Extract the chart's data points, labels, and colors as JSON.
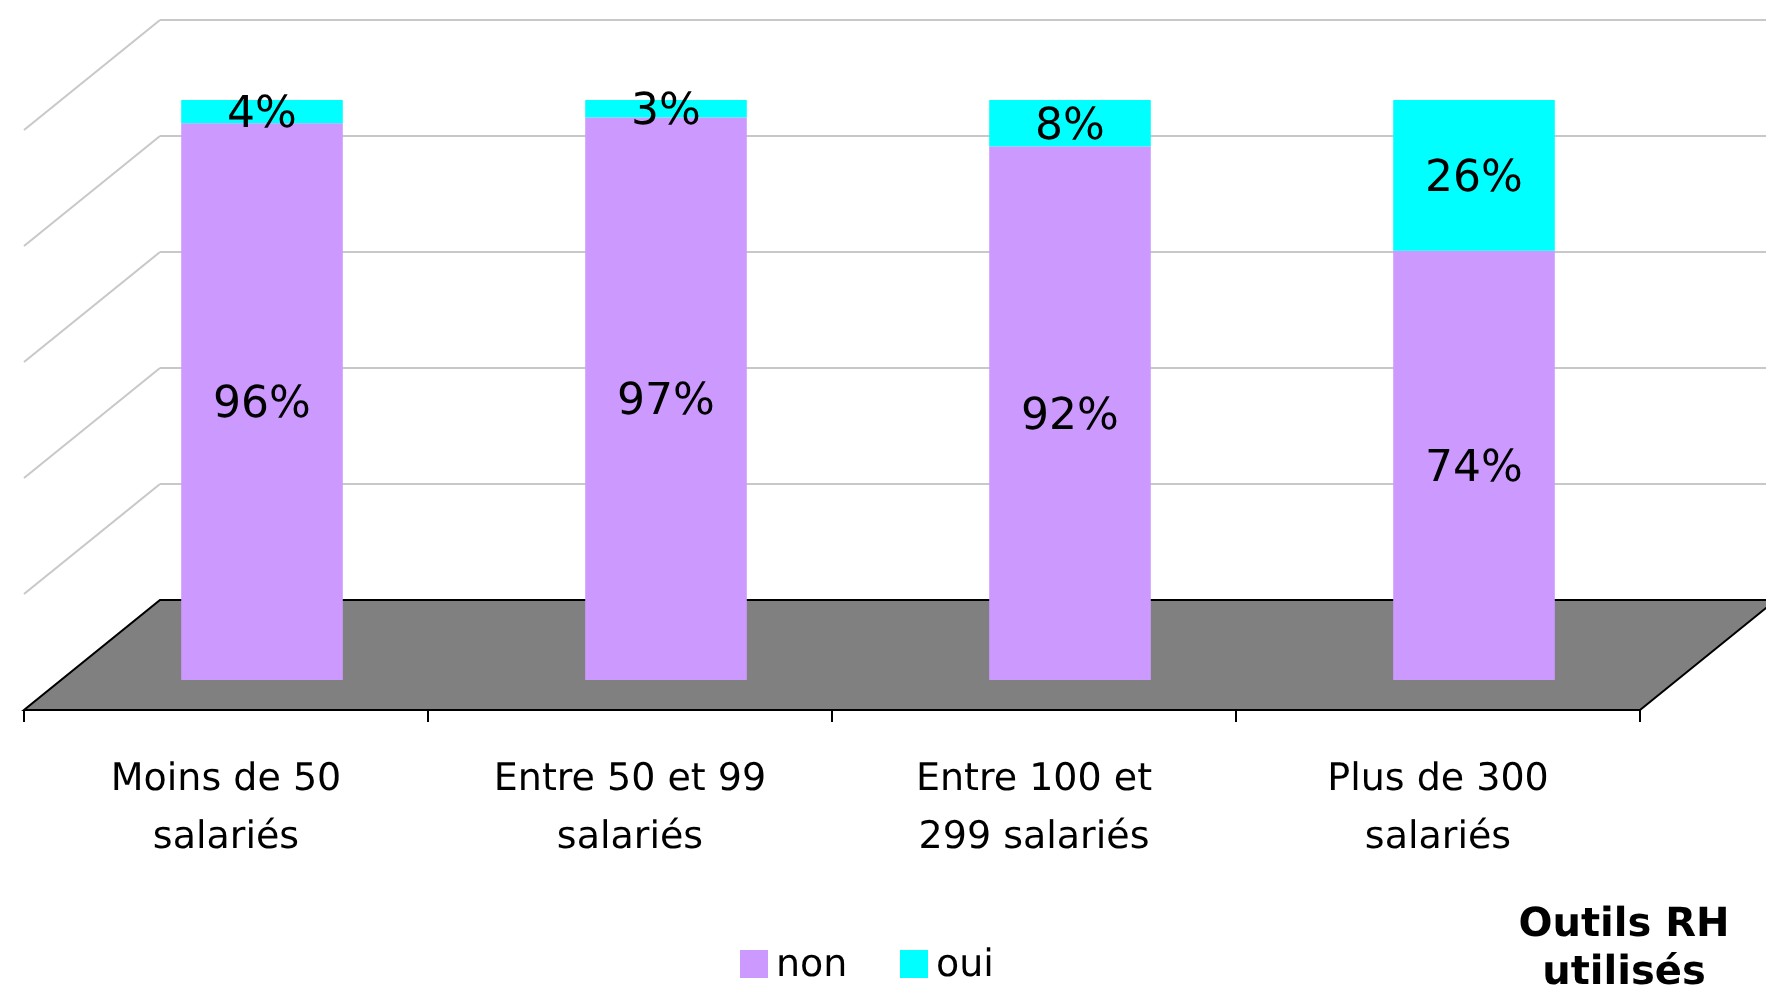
{
  "chart_data": {
    "type": "bar",
    "stacked": true,
    "title": "Outils RH utilisés",
    "categories": [
      "Moins de 50 salariés",
      "Entre 50 et 99 salariés",
      "Entre 100 et 299 salariés",
      "Plus de 300 salariés"
    ],
    "series": [
      {
        "name": "non",
        "color": "#cc99ff",
        "values": [
          96,
          97,
          92,
          74
        ],
        "value_labels": [
          "96%",
          "97%",
          "92%",
          "74%"
        ]
      },
      {
        "name": "oui",
        "color": "#00ffff",
        "values": [
          4,
          3,
          8,
          26
        ],
        "value_labels": [
          "4%",
          "3%",
          "8%",
          "26%"
        ]
      }
    ],
    "ylim": [
      0,
      100
    ],
    "tick_labels": "x",
    "grid": true,
    "legend": "bottom"
  }
}
